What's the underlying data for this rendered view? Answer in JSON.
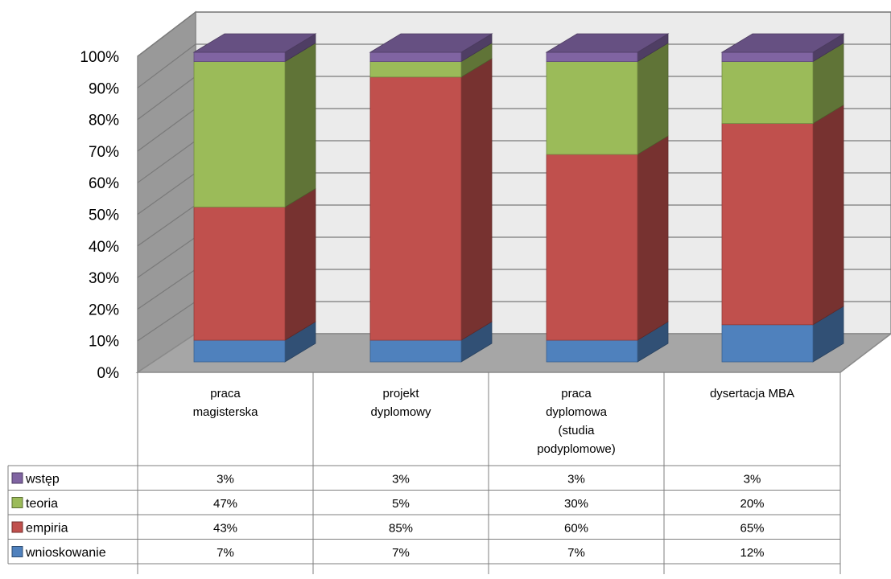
{
  "chart_data": {
    "type": "bar",
    "stacked": true,
    "three_d": true,
    "percent_stacked": true,
    "categories": [
      [
        "praca",
        "magisterska"
      ],
      [
        "projekt",
        "dyplomowy"
      ],
      [
        "praca",
        "dyplomowa",
        "(studia",
        "podyplomowe)"
      ],
      [
        "dysertacja MBA"
      ]
    ],
    "series": [
      {
        "name": "wnioskowanie",
        "values": [
          7,
          7,
          7,
          12
        ],
        "labels": [
          "7%",
          "7%",
          "7%",
          "12%"
        ],
        "color": "#4F81BD"
      },
      {
        "name": "empiria",
        "values": [
          43,
          85,
          60,
          65
        ],
        "labels": [
          "43%",
          "85%",
          "60%",
          "65%"
        ],
        "color": "#C0504D"
      },
      {
        "name": "teoria",
        "values": [
          47,
          5,
          30,
          20
        ],
        "labels": [
          "47%",
          "5%",
          "30%",
          "20%"
        ],
        "color": "#9BBB59"
      },
      {
        "name": "wstęp",
        "values": [
          3,
          3,
          3,
          3
        ],
        "labels": [
          "3%",
          "3%",
          "3%",
          "3%"
        ],
        "color": "#8064A2"
      }
    ],
    "table_order": [
      "wstęp",
      "teoria",
      "empiria",
      "wnioskowanie"
    ],
    "yticks": [
      "0%",
      "10%",
      "20%",
      "30%",
      "40%",
      "50%",
      "60%",
      "70%",
      "80%",
      "90%",
      "100%"
    ],
    "ylim": [
      0,
      100
    ],
    "title": "",
    "xlabel": "",
    "ylabel": "",
    "grid": true,
    "legend": "data-table"
  }
}
